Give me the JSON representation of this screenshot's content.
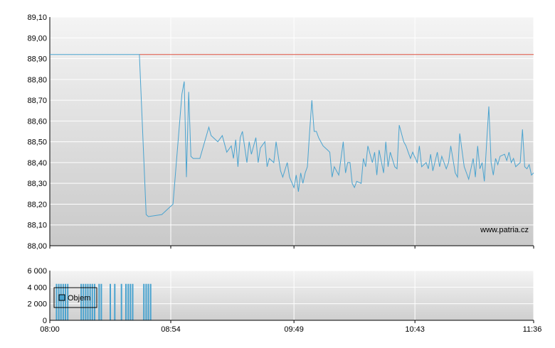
{
  "watermark": "www.patria.cz",
  "colors": {
    "price_line": "#4aa3cf",
    "reference_line": "#e05040",
    "volume_bar": "#4aa3cf"
  },
  "chart_data": [
    {
      "type": "line",
      "title": "",
      "xlabel": "",
      "ylabel": "",
      "ylim": [
        88.0,
        89.1
      ],
      "y_ticks": [
        "89,10",
        "89,00",
        "88,90",
        "88,80",
        "88,70",
        "88,60",
        "88,50",
        "88,40",
        "88,30",
        "88,20",
        "88,10",
        "88,00"
      ],
      "x_ticks": [
        "08:00",
        "08:54",
        "09:49",
        "10:43",
        "11:36"
      ],
      "xlim": [
        "08:00",
        "11:36"
      ],
      "grid": true,
      "reference_line": {
        "value": 88.92,
        "from": "08:40"
      },
      "series": [
        {
          "x": [
            "08:00",
            "08:40",
            "08:43",
            "08:44",
            "08:50",
            "08:54",
            "08:55",
            "08:59",
            "09:00",
            "09:01",
            "09:02",
            "09:03",
            "09:04",
            "09:05",
            "09:07",
            "09:11",
            "09:12",
            "09:13",
            "09:15",
            "09:17",
            "09:19",
            "09:21",
            "09:22",
            "09:23",
            "09:24",
            "09:25",
            "09:26",
            "09:28",
            "09:29",
            "09:30",
            "09:32",
            "09:33",
            "09:34",
            "09:36",
            "09:37",
            "09:38",
            "09:40",
            "09:41",
            "09:43",
            "09:44",
            "09:46",
            "09:47",
            "09:49",
            "09:50",
            "09:51",
            "09:52",
            "09:53",
            "09:54",
            "09:55",
            "09:56",
            "09:57",
            "09:58",
            "09:59",
            "10:00",
            "10:01",
            "10:02",
            "10:04",
            "10:05",
            "10:06",
            "10:07",
            "10:09",
            "10:11",
            "10:12",
            "10:13",
            "10:14",
            "10:15",
            "10:16",
            "10:17",
            "10:19",
            "10:20",
            "10:21",
            "10:22",
            "10:24",
            "10:25",
            "10:26",
            "10:27",
            "10:29",
            "10:30",
            "10:31",
            "10:32",
            "10:34",
            "10:35",
            "10:36",
            "10:38",
            "10:39",
            "10:40",
            "10:41",
            "10:42",
            "10:44",
            "10:45",
            "10:46",
            "10:48",
            "10:49",
            "10:50",
            "10:51",
            "10:53",
            "10:54",
            "10:55",
            "10:57",
            "10:58",
            "10:59",
            "11:01",
            "11:02",
            "11:03",
            "11:05",
            "11:06",
            "11:07",
            "11:09",
            "11:10",
            "11:11",
            "11:12",
            "11:13",
            "11:14",
            "11:16",
            "11:17",
            "11:18",
            "11:19",
            "11:20",
            "11:21",
            "11:23",
            "11:24",
            "11:25",
            "11:26",
            "11:27",
            "11:28",
            "11:30",
            "11:31",
            "11:32",
            "11:33",
            "11:34",
            "11:35",
            "11:36"
          ],
          "y": [
            88.92,
            88.92,
            88.15,
            88.14,
            88.15,
            88.19,
            88.2,
            88.73,
            88.79,
            88.33,
            88.74,
            88.43,
            88.42,
            88.42,
            88.42,
            88.57,
            88.53,
            88.52,
            88.5,
            88.53,
            88.45,
            88.48,
            88.42,
            88.51,
            88.38,
            88.52,
            88.55,
            88.4,
            88.5,
            88.44,
            88.52,
            88.4,
            88.47,
            88.5,
            88.38,
            88.42,
            88.4,
            88.5,
            88.36,
            88.33,
            88.4,
            88.33,
            88.28,
            88.34,
            88.26,
            88.35,
            88.3,
            88.35,
            88.38,
            88.55,
            88.7,
            88.55,
            88.55,
            88.52,
            88.5,
            88.48,
            88.46,
            88.45,
            88.33,
            88.38,
            88.34,
            88.5,
            88.35,
            88.4,
            88.4,
            88.3,
            88.28,
            88.31,
            88.3,
            88.42,
            88.38,
            88.48,
            88.4,
            88.45,
            88.34,
            88.46,
            88.35,
            88.5,
            88.38,
            88.45,
            88.38,
            88.37,
            88.58,
            88.5,
            88.48,
            88.45,
            88.42,
            88.45,
            88.4,
            88.48,
            88.38,
            88.4,
            88.37,
            88.44,
            88.36,
            88.45,
            88.38,
            88.43,
            88.37,
            88.4,
            88.48,
            88.35,
            88.33,
            88.54,
            88.38,
            88.35,
            88.32,
            88.42,
            88.33,
            88.48,
            88.37,
            88.4,
            88.31,
            88.67,
            88.4,
            88.34,
            88.42,
            88.39,
            88.43,
            88.44,
            88.41,
            88.45,
            88.4,
            88.42,
            88.38,
            88.4,
            88.56,
            88.38,
            88.37,
            88.39,
            88.34,
            88.35
          ]
        }
      ]
    },
    {
      "type": "bar",
      "title": "",
      "xlabel": "",
      "ylabel": "",
      "ylim": [
        0,
        6000
      ],
      "y_ticks": [
        "6 000",
        "4 000",
        "2 000",
        "0"
      ],
      "x_ticks": [
        "08:00",
        "08:54",
        "09:49",
        "10:43",
        "11:36"
      ],
      "legend": {
        "label": "Objem",
        "placement": "left"
      },
      "series": [
        {
          "name": "Objem",
          "x": [
            "08:03",
            "08:04",
            "08:05",
            "08:06",
            "08:07",
            "08:08",
            "08:14",
            "08:15",
            "08:16",
            "08:17",
            "08:18",
            "08:19",
            "08:20",
            "08:22",
            "08:23",
            "08:27",
            "08:29",
            "08:32",
            "08:34",
            "08:35",
            "08:36",
            "08:37",
            "08:42",
            "08:43",
            "08:44",
            "08:45"
          ],
          "values": [
            4400,
            4400,
            4400,
            4400,
            4400,
            4400,
            4400,
            4400,
            4400,
            4400,
            4400,
            4400,
            4400,
            4400,
            4400,
            4400,
            4400,
            4400,
            4400,
            4400,
            4400,
            4400,
            4400,
            4400,
            4400,
            4400
          ]
        }
      ]
    }
  ]
}
